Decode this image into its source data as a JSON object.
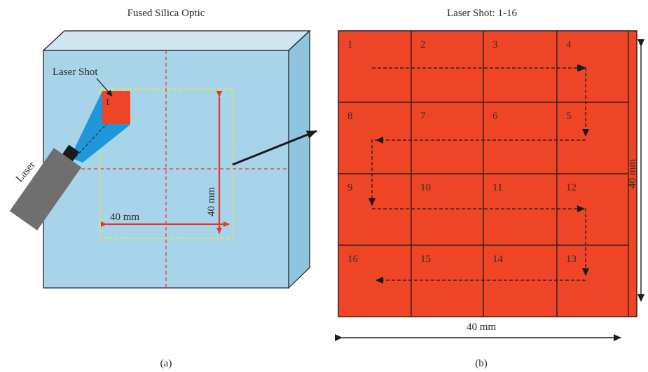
{
  "panel_a": {
    "title": "Fused Silica Optic",
    "laser_shot_label": "Laser Shot",
    "shot_number": "1",
    "laser_label": "Laser",
    "width_label": "40 mm",
    "height_label": "40 mm",
    "caption": "(a)"
  },
  "panel_b": {
    "title": "Laser Shot: 1-16",
    "cell_numbers": [
      "1",
      "2",
      "3",
      "4",
      "8",
      "7",
      "6",
      "5",
      "9",
      "10",
      "11",
      "12",
      "16",
      "15",
      "14",
      "13"
    ],
    "width_label": "40 mm",
    "height_label": "40 mm",
    "caption": "(b)"
  },
  "colors": {
    "glass_front": "#a8d4ea",
    "glass_top": "#cfe6f2",
    "glass_side": "#8ec4de",
    "shot_red": "#ee4526",
    "dashed_red": "#e0392b",
    "dashed_yellow": "#e6e84a",
    "beam_blue": "#1f97d8",
    "laser_gray": "#6f6f6f",
    "line_dark": "#1a1a1a"
  }
}
